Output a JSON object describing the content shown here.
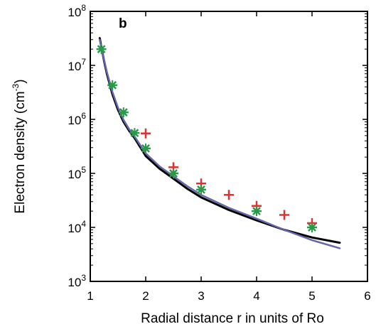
{
  "chart_data": {
    "type": "scatter",
    "panel_label": "b",
    "xlabel": "Radial distance r in units of Ro",
    "ylabel": "Electron density (cm",
    "ylabel_exponent": "-3",
    "ylabel_suffix": ")",
    "xlim": [
      1,
      6
    ],
    "ylim": [
      1000,
      100000000
    ],
    "yscale": "log",
    "grid": false,
    "x_ticks": [
      {
        "value": 1,
        "label": "1"
      },
      {
        "value": 2,
        "label": "2"
      },
      {
        "value": 3,
        "label": "3"
      },
      {
        "value": 4,
        "label": "4"
      },
      {
        "value": 5,
        "label": "5"
      },
      {
        "value": 6,
        "label": "6"
      }
    ],
    "y_ticks": [
      {
        "value": 1000,
        "base": "10",
        "exp": "3"
      },
      {
        "value": 10000,
        "base": "10",
        "exp": "4"
      },
      {
        "value": 100000,
        "base": "10",
        "exp": "5"
      },
      {
        "value": 1000000,
        "base": "10",
        "exp": "6"
      },
      {
        "value": 10000000,
        "base": "10",
        "exp": "7"
      },
      {
        "value": 100000000,
        "base": "10",
        "exp": "8"
      }
    ],
    "series": [
      {
        "kind": "line",
        "color": "#000000",
        "points": [
          [
            1.17,
            32000000
          ],
          [
            1.2,
            22000000
          ],
          [
            1.25,
            12000000
          ],
          [
            1.3,
            7000000
          ],
          [
            1.4,
            2900000
          ],
          [
            1.5,
            1500000
          ],
          [
            1.6,
            900000
          ],
          [
            1.7,
            620000
          ],
          [
            1.8,
            450000
          ],
          [
            2.0,
            210000
          ],
          [
            2.25,
            122000
          ],
          [
            2.5,
            80000
          ],
          [
            2.75,
            52000
          ],
          [
            3.0,
            36000
          ],
          [
            3.5,
            21000
          ],
          [
            4.0,
            13500
          ],
          [
            4.5,
            9000
          ],
          [
            5.0,
            6500
          ],
          [
            5.5,
            5200
          ]
        ]
      },
      {
        "kind": "line",
        "color": "#6666aa",
        "points": [
          [
            1.17,
            30000000
          ],
          [
            1.2,
            21000000
          ],
          [
            1.25,
            12500000
          ],
          [
            1.3,
            7500000
          ],
          [
            1.4,
            3200000
          ],
          [
            1.5,
            1650000
          ],
          [
            1.6,
            980000
          ],
          [
            1.7,
            660000
          ],
          [
            1.8,
            480000
          ],
          [
            2.0,
            235000
          ],
          [
            2.25,
            135000
          ],
          [
            2.5,
            88000
          ],
          [
            2.75,
            58000
          ],
          [
            3.0,
            40000
          ],
          [
            3.5,
            23000
          ],
          [
            4.0,
            14500
          ],
          [
            4.5,
            9000
          ],
          [
            5.0,
            5800
          ],
          [
            5.5,
            4100
          ]
        ]
      },
      {
        "kind": "plus",
        "color": "#e03030",
        "points": [
          [
            2.0,
            550000
          ],
          [
            2.5,
            130000
          ],
          [
            3.0,
            65000
          ],
          [
            3.5,
            40000
          ],
          [
            4.0,
            25000
          ],
          [
            4.5,
            17000
          ],
          [
            5.0,
            12000
          ]
        ]
      },
      {
        "kind": "asterisk",
        "color": "#2a9a4a",
        "points": [
          [
            1.2,
            20000000
          ],
          [
            1.4,
            4300000
          ],
          [
            1.6,
            1350000
          ],
          [
            1.8,
            560000
          ],
          [
            2.0,
            290000
          ],
          [
            2.5,
            100000
          ],
          [
            3.0,
            50000
          ],
          [
            4.0,
            20000
          ],
          [
            5.0,
            10000
          ]
        ]
      }
    ]
  }
}
